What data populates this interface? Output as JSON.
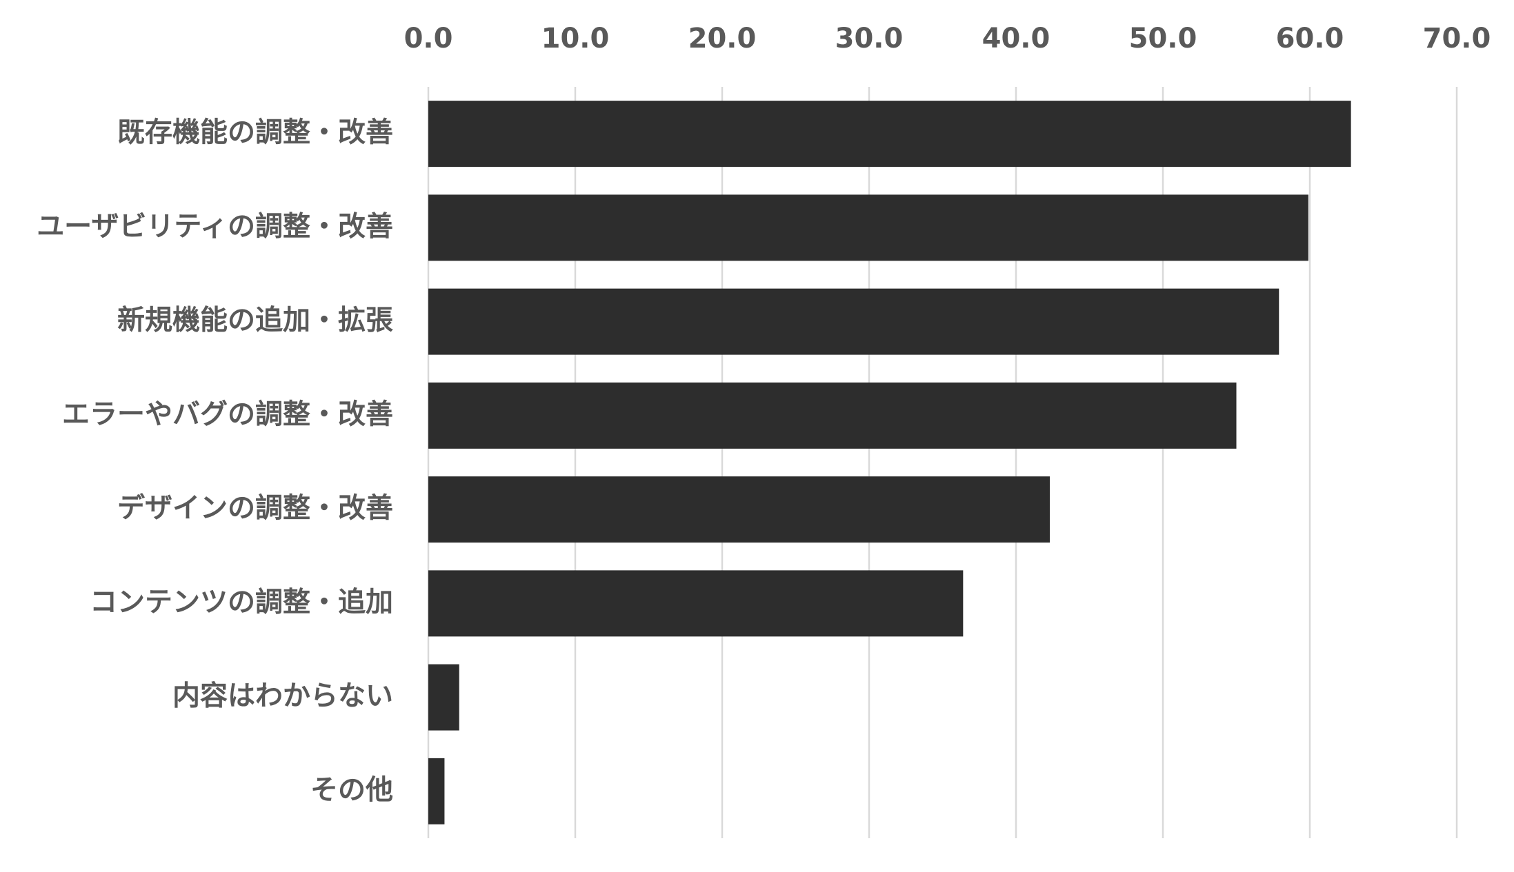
{
  "chart_data": {
    "type": "bar",
    "orientation": "horizontal",
    "categories": [
      "既存機能の調整・改善",
      "ユーザビリティの調整・改善",
      "新規機能の追加・拡張",
      "エラーやバグの調整・改善",
      "デザインの調整・改善",
      "コンテンツの調整・追加",
      "内容はわからない",
      "その他"
    ],
    "values": [
      62.8,
      59.9,
      57.9,
      55.0,
      42.3,
      36.4,
      2.1,
      1.1
    ],
    "xlim": [
      0,
      70
    ],
    "ticks": [
      "0.0",
      "10.0",
      "20.0",
      "30.0",
      "40.0",
      "50.0",
      "60.0",
      "70.0"
    ],
    "tick_values": [
      0,
      10,
      20,
      30,
      40,
      50,
      60,
      70
    ],
    "x_axis_position": "top",
    "grid": true,
    "legend": "none",
    "title": "",
    "xlabel": "",
    "ylabel": "",
    "colors": {
      "bar": "#2d2d2d",
      "grid": "#d9d9d9",
      "text": "#595959"
    }
  }
}
